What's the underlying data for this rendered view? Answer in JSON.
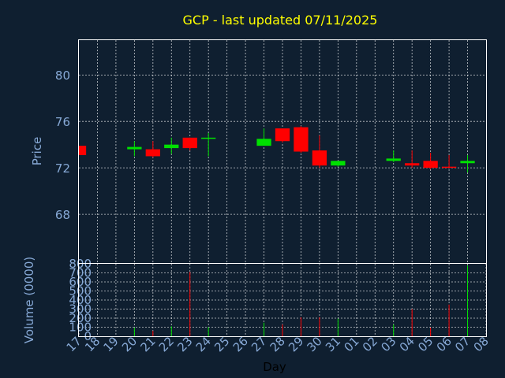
{
  "chart_data": {
    "type": "candlestick",
    "title": "GCP - last updated 07/11/2025",
    "xlabel": "Day",
    "ylabel_price": "Price",
    "ylabel_volume": "Volume (0000)",
    "x_tick_labels": [
      "17",
      "18",
      "19",
      "20",
      "21",
      "22",
      "23",
      "24",
      "25",
      "26",
      "27",
      "28",
      "29",
      "30",
      "31",
      "01",
      "02",
      "03",
      "04",
      "05",
      "06",
      "07",
      "08"
    ],
    "price_ylim": [
      63.8,
      83.0
    ],
    "price_yticks": [
      68,
      72,
      76,
      80
    ],
    "volume_ylim": [
      0,
      800
    ],
    "volume_yticks": [
      0,
      100,
      200,
      300,
      400,
      500,
      600,
      700,
      800
    ],
    "grid": true,
    "colors": {
      "background": "#0f1f30",
      "up": "#00e000",
      "down": "#ff0000",
      "title": "#ffff00",
      "axis_text": "#87a9d6",
      "frame": "#ffffff",
      "grid": "#ffffff"
    },
    "candles": [
      {
        "day": "17",
        "open": 73.9,
        "high": 73.9,
        "low": 73.1,
        "close": 73.1
      },
      {
        "day": "20",
        "open": 73.6,
        "high": 74.3,
        "low": 73.0,
        "close": 73.8
      },
      {
        "day": "21",
        "open": 73.6,
        "high": 74.3,
        "low": 72.9,
        "close": 73.0
      },
      {
        "day": "22",
        "open": 73.7,
        "high": 74.6,
        "low": 73.2,
        "close": 74.0
      },
      {
        "day": "23",
        "open": 74.6,
        "high": 74.6,
        "low": 73.5,
        "close": 73.7
      },
      {
        "day": "24",
        "open": 74.5,
        "high": 75.0,
        "low": 73.0,
        "close": 74.6
      },
      {
        "day": "27",
        "open": 73.9,
        "high": 75.4,
        "low": 73.9,
        "close": 74.5
      },
      {
        "day": "28",
        "open": 75.4,
        "high": 75.4,
        "low": 74.2,
        "close": 74.3
      },
      {
        "day": "29",
        "open": 75.5,
        "high": 75.6,
        "low": 73.3,
        "close": 73.4
      },
      {
        "day": "30",
        "open": 73.5,
        "high": 74.8,
        "low": 72.0,
        "close": 72.2
      },
      {
        "day": "31",
        "open": 72.2,
        "high": 72.6,
        "low": 72.1,
        "close": 72.6
      },
      {
        "day": "03",
        "open": 72.6,
        "high": 73.5,
        "low": 72.5,
        "close": 72.8
      },
      {
        "day": "04",
        "open": 72.4,
        "high": 73.5,
        "low": 72.0,
        "close": 72.2
      },
      {
        "day": "05",
        "open": 72.6,
        "high": 73.3,
        "low": 71.9,
        "close": 72.0
      },
      {
        "day": "06",
        "open": 72.1,
        "high": 73.1,
        "low": 72.0,
        "close": 72.0
      },
      {
        "day": "07",
        "open": 72.4,
        "high": 73.1,
        "low": 71.6,
        "close": 72.6
      }
    ],
    "volume": [
      {
        "day": "17",
        "value": 0
      },
      {
        "day": "20",
        "value": 95
      },
      {
        "day": "21",
        "value": 60
      },
      {
        "day": "22",
        "value": 110
      },
      {
        "day": "23",
        "value": 710
      },
      {
        "day": "24",
        "value": 100
      },
      {
        "day": "27",
        "value": 150
      },
      {
        "day": "28",
        "value": 130
      },
      {
        "day": "29",
        "value": 210
      },
      {
        "day": "30",
        "value": 210
      },
      {
        "day": "31",
        "value": 195
      },
      {
        "day": "03",
        "value": 130
      },
      {
        "day": "04",
        "value": 300
      },
      {
        "day": "05",
        "value": 95
      },
      {
        "day": "06",
        "value": 350
      },
      {
        "day": "07",
        "value": 780
      }
    ]
  }
}
